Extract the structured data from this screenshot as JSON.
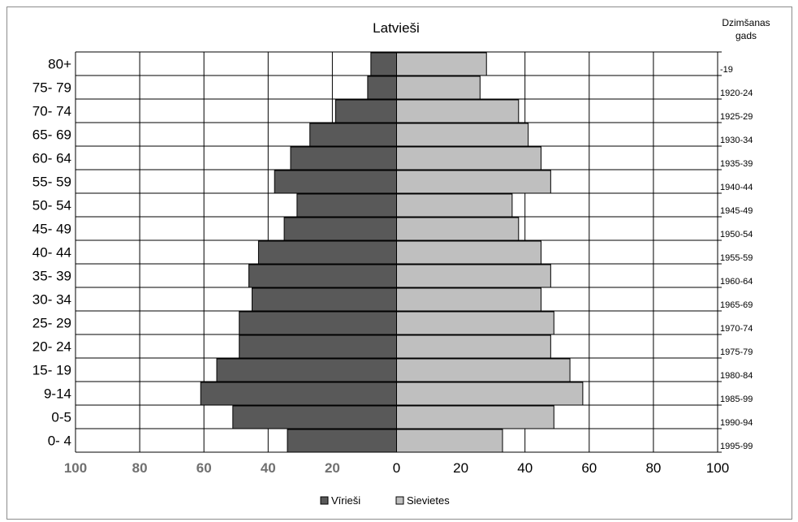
{
  "chart_data": {
    "type": "bar",
    "orientation": "horizontal",
    "title": "Latvieši",
    "right_axis_title": [
      "Dzimšanas",
      "gads"
    ],
    "categories": [
      "80+",
      "75- 79",
      "70- 74",
      "65- 69",
      "60- 64",
      "55- 59",
      "50- 54",
      "45- 49",
      "40- 44",
      "35- 39",
      "30- 34",
      "25- 29",
      "20- 24",
      "15- 19",
      "9-14",
      "0-5",
      "0- 4"
    ],
    "birth_years": [
      "-19",
      "1920-24",
      "1925-29",
      "1930-34",
      "1935-39",
      "1940-44",
      "1945-49",
      "1950-54",
      "1955-59",
      "1960-64",
      "1965-69",
      "1970-74",
      "1975-79",
      "1980-84",
      "1985-99",
      "1990-94",
      "1995-99"
    ],
    "series": [
      {
        "name": "Vīrieši",
        "color": "#595959",
        "values": [
          8,
          9,
          19,
          27,
          33,
          38,
          31,
          35,
          43,
          46,
          45,
          49,
          49,
          56,
          61,
          51,
          34
        ]
      },
      {
        "name": "Sievietes",
        "color": "#bfbfbf",
        "values": [
          28,
          26,
          38,
          41,
          45,
          48,
          36,
          38,
          45,
          48,
          45,
          49,
          48,
          54,
          58,
          49,
          33
        ]
      }
    ],
    "xlim": [
      -100,
      100
    ],
    "x_ticks": [
      "100",
      "80",
      "60",
      "40",
      "20",
      "0",
      "20",
      "40",
      "60",
      "80",
      "100"
    ],
    "grid": true,
    "legend_position": "bottom"
  }
}
